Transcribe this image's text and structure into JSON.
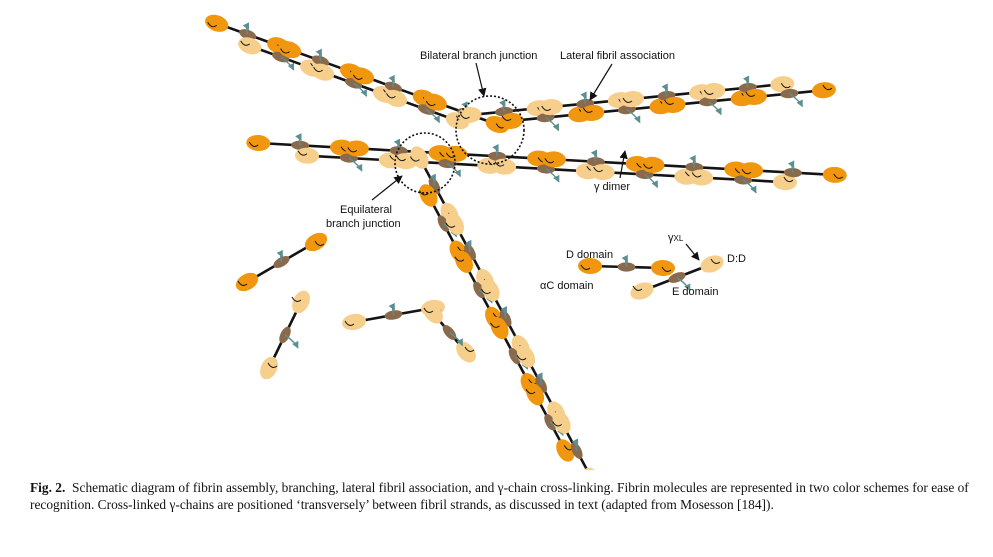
{
  "figure": {
    "labels": {
      "bilateral": "Bilateral branch junction",
      "lateral": "Lateral fibril association",
      "gamma_dimer": "γ dimer",
      "equilateral_line1": "Equilateral",
      "equilateral_line2": "branch junction",
      "d_domain": "D domain",
      "alpha_c_domain": "αC domain",
      "e_domain": "E domain",
      "gamma_xl_main": "γ",
      "gamma_xl_sub": "XL",
      "dd": "D:D"
    },
    "colors": {
      "d_dark": "#f0960f",
      "d_light": "#f7cf8d",
      "e_domain": "#8a6a4d",
      "alpha_c": "#5b8f92",
      "linker": "#141414"
    }
  },
  "caption": {
    "fig_label": "Fig. 2.",
    "text": "Schematic diagram of fibrin assembly, branching, lateral fibril association, and γ-chain cross-linking. Fibrin molecules are represented in two color schemes for ease of recognition. Cross-linked γ-chains are positioned ‘transversely’ between fibril strands, as discussed in text (adapted from Mosesson [184])."
  }
}
